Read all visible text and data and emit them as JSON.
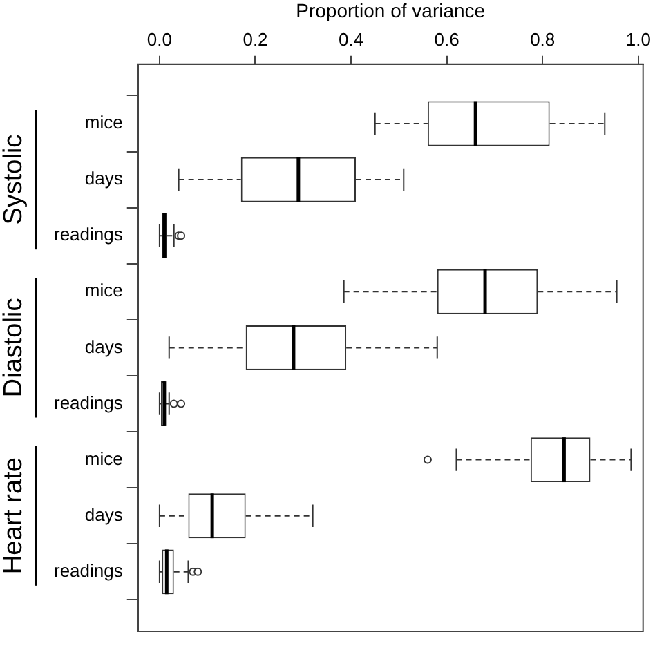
{
  "chart_data": {
    "type": "box",
    "orientation": "horizontal",
    "xlabel": "Proportion of variance",
    "categories": [
      "mice",
      "days",
      "readings",
      "mice",
      "days",
      "readings",
      "mice",
      "days",
      "readings"
    ],
    "annotations": [
      "Systolic",
      "Diastolic",
      "Heart rate"
    ],
    "xlim": [
      -0.045,
      1.01
    ],
    "xticks": [
      {
        "value": 0,
        "label": "0.0"
      },
      {
        "value": 0.2,
        "label": "0.2"
      },
      {
        "value": 0.4,
        "label": "0.4"
      },
      {
        "value": 0.6,
        "label": "0.6"
      },
      {
        "value": 0.8,
        "label": "0.8"
      },
      {
        "value": 1,
        "label": "1.0"
      }
    ],
    "grid": false,
    "line_style": "dashed",
    "series": [
      {
        "color": "#333333",
        "boxes": [
          {
            "low": 0.45,
            "q1": 0.56,
            "median": 0.66,
            "q3": 0.815,
            "high": 0.93
          },
          {
            "low": 0.04,
            "q1": 0.17,
            "median": 0.29,
            "q3": 0.41,
            "high": 0.51
          },
          {
            "low": 0.0,
            "q1": 0.005,
            "median": 0.01,
            "q3": 0.015,
            "high": 0.03,
            "outliers": [
              0.04,
              0.045
            ]
          },
          {
            "low": 0.385,
            "q1": 0.58,
            "median": 0.68,
            "q3": 0.79,
            "high": 0.955
          },
          {
            "low": 0.02,
            "q1": 0.18,
            "median": 0.28,
            "q3": 0.39,
            "high": 0.58
          },
          {
            "low": 0.0,
            "q1": 0.003,
            "median": 0.01,
            "q3": 0.012,
            "high": 0.02,
            "outliers": [
              0.03,
              0.045
            ]
          },
          {
            "low": 0.62,
            "q1": 0.775,
            "median": 0.845,
            "q3": 0.9,
            "high": 0.985,
            "outliers": [
              0.56
            ]
          },
          {
            "low": 0.0,
            "q1": 0.06,
            "median": 0.11,
            "q3": 0.18,
            "high": 0.32
          },
          {
            "low": 0.0,
            "q1": 0.005,
            "median": 0.015,
            "q3": 0.03,
            "high": 0.06,
            "outliers": [
              0.07,
              0.08
            ]
          }
        ]
      }
    ]
  }
}
